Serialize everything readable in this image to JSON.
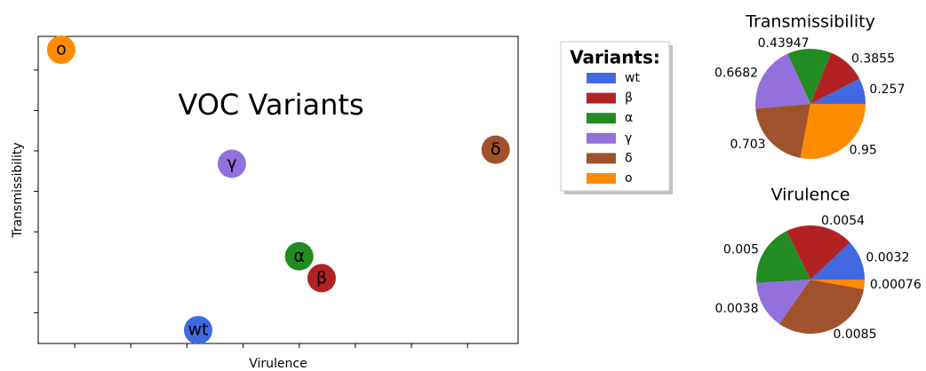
{
  "chart_data": [
    {
      "type": "scatter",
      "x_label": "Virulence",
      "y_label": "Transmissibility",
      "annotation": "VOC Variants",
      "annotation_color": "#0000ff",
      "legend_title": "Variants:",
      "xlim": [
        0.00035,
        0.0089
      ],
      "ylim": [
        0.224,
        0.983
      ],
      "xticks": [
        0.001,
        0.002,
        0.003,
        0.004,
        0.005,
        0.006,
        0.007,
        0.008
      ],
      "yticks": [
        0.3,
        0.4,
        0.5,
        0.6,
        0.7,
        0.8,
        0.9
      ],
      "series": [
        {
          "name": "wt",
          "color": "#4169e1",
          "x": [
            0.0032
          ],
          "values": [
            0.257
          ]
        },
        {
          "name": "β",
          "color": "#b22222",
          "x": [
            0.0054
          ],
          "values": [
            0.3855
          ]
        },
        {
          "name": "α",
          "color": "#228b22",
          "x": [
            0.005
          ],
          "values": [
            0.43947
          ]
        },
        {
          "name": "γ",
          "color": "#9370db",
          "x": [
            0.0038
          ],
          "values": [
            0.6682
          ]
        },
        {
          "name": "δ",
          "color": "#a0522d",
          "x": [
            0.0085
          ],
          "values": [
            0.703
          ]
        },
        {
          "name": "o",
          "color": "#ff8c00",
          "x": [
            0.00076
          ],
          "values": [
            0.95
          ]
        }
      ]
    },
    {
      "type": "pie",
      "title": "Transmissibility",
      "values": [
        0.257,
        0.3855,
        0.43947,
        0.6682,
        0.703,
        0.95
      ],
      "colors": [
        "#4169e1",
        "#b22222",
        "#228b22",
        "#9370db",
        "#a0522d",
        "#ff8c00"
      ]
    },
    {
      "type": "pie",
      "title": "Virulence",
      "values": [
        0.0032,
        0.0054,
        0.005,
        0.0038,
        0.0085,
        0.00076
      ],
      "colors": [
        "#4169e1",
        "#b22222",
        "#228b22",
        "#9370db",
        "#a0522d",
        "#ff8c00"
      ]
    }
  ]
}
